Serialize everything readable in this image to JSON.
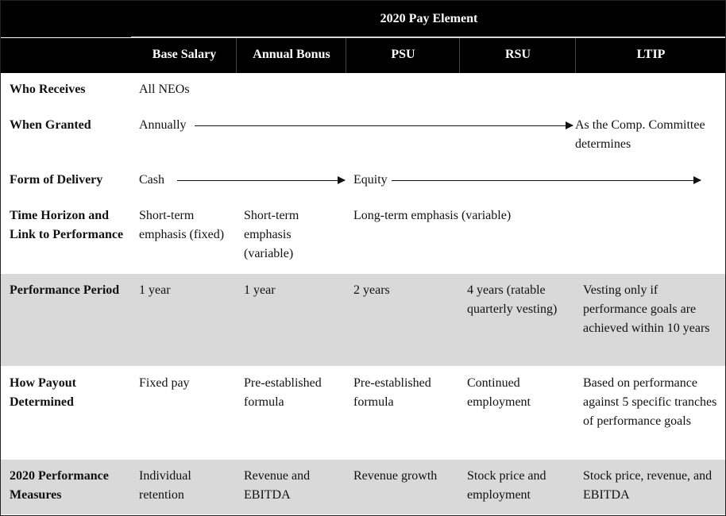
{
  "table": {
    "title": "2020 Pay Element",
    "columns": [
      "Base Salary",
      "Annual Bonus",
      "PSU",
      "RSU",
      "LTIP"
    ],
    "rows": {
      "who": {
        "label": "Who Receives",
        "value": "All NEOs"
      },
      "when": {
        "label": "When Granted",
        "start": "Annually",
        "end": "As the Comp. Committee determines"
      },
      "form": {
        "label": "Form of Delivery",
        "cash": "Cash",
        "equity": "Equity"
      },
      "horizon": {
        "label": "Time Horizon and Link to Performance",
        "base_salary": "Short-term emphasis (fixed)",
        "annual_bonus": "Short-term emphasis (variable)",
        "long_term": "Long-term emphasis (variable)"
      },
      "period": {
        "label": "Performance Period",
        "base_salary": "1 year",
        "annual_bonus": "1 year",
        "psu": "2 years",
        "rsu": "4 years (ratable quarterly vesting)",
        "ltip": "Vesting only if performance goals are achieved within 10 years"
      },
      "payout": {
        "label": "How Payout Determined",
        "base_salary": "Fixed pay",
        "annual_bonus": "Pre-established formula",
        "psu": "Pre-established formula",
        "rsu": "Continued employment",
        "ltip": "Based on performance against 5 specific tranches of performance goals"
      },
      "measures": {
        "label": "2020 Performance Measures",
        "base_salary": "Individual retention",
        "annual_bonus": "Revenue and EBITDA",
        "psu": "Revenue growth",
        "rsu": "Stock price and employment",
        "ltip": "Stock price, revenue, and EBITDA"
      }
    }
  }
}
